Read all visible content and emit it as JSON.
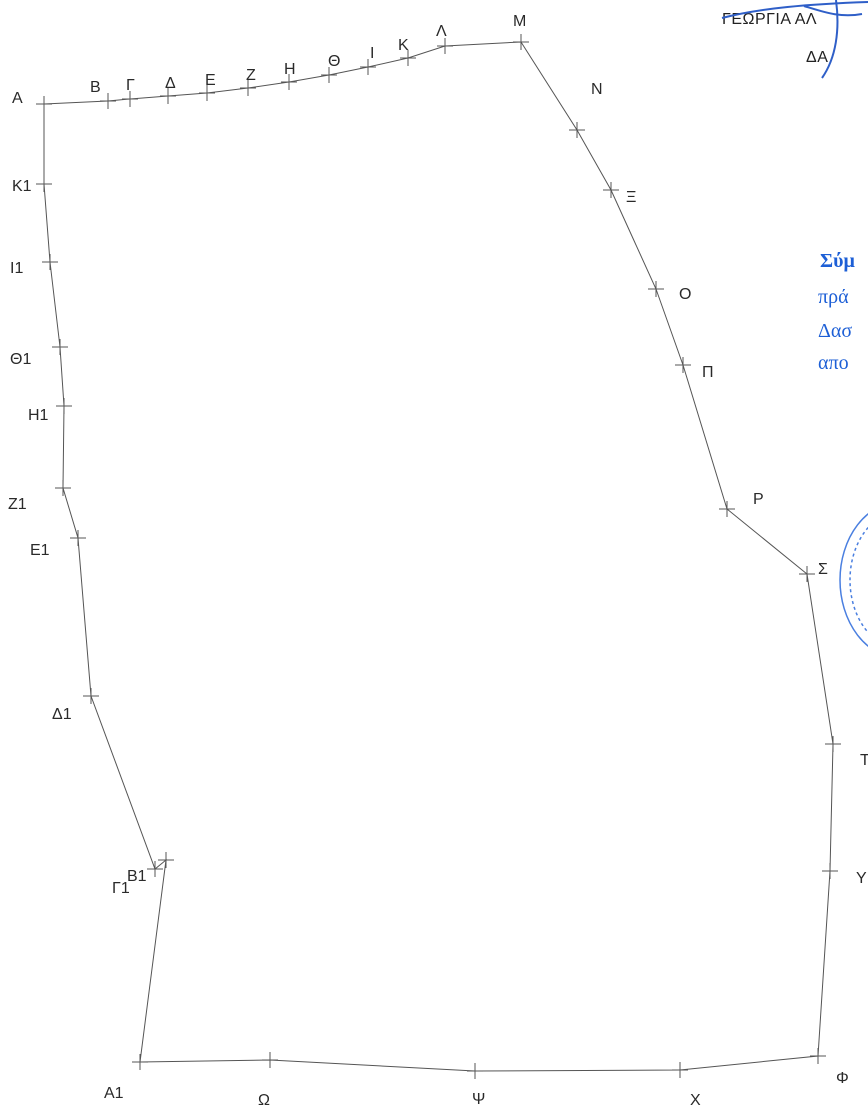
{
  "header": {
    "name_line1": "ΓΕΩΡΓΙΑ ΑΛ",
    "name_line2": "ΔΑ"
  },
  "stamp_text": [
    "Σύμ",
    "πρά",
    "Δασ",
    "απο"
  ],
  "colors": {
    "line": "#555555",
    "text": "#2a2a2a",
    "stamp": "#1d5fd6"
  },
  "vertices": [
    {
      "label": "Α"
    },
    {
      "label": "Β"
    },
    {
      "label": "Γ"
    },
    {
      "label": "Δ"
    },
    {
      "label": "Ε"
    },
    {
      "label": "Ζ"
    },
    {
      "label": "Η"
    },
    {
      "label": "Θ"
    },
    {
      "label": "Ι"
    },
    {
      "label": "Κ"
    },
    {
      "label": "Λ"
    },
    {
      "label": "Μ"
    },
    {
      "label": "Ν"
    },
    {
      "label": "Ξ"
    },
    {
      "label": "Ο"
    },
    {
      "label": "Π"
    },
    {
      "label": "Ρ"
    },
    {
      "label": "Σ"
    },
    {
      "label": "Τ"
    },
    {
      "label": "Υ"
    },
    {
      "label": "Φ"
    },
    {
      "label": "Χ"
    },
    {
      "label": "Ψ"
    },
    {
      "label": "Ω"
    },
    {
      "label": "Α1"
    },
    {
      "label": "Β1"
    },
    {
      "label": "Γ1"
    },
    {
      "label": "Δ1"
    },
    {
      "label": "Ε1"
    },
    {
      "label": "Ζ1"
    },
    {
      "label": "Η1"
    },
    {
      "label": "Θ1"
    },
    {
      "label": "Ι1"
    },
    {
      "label": "Κ1"
    }
  ]
}
